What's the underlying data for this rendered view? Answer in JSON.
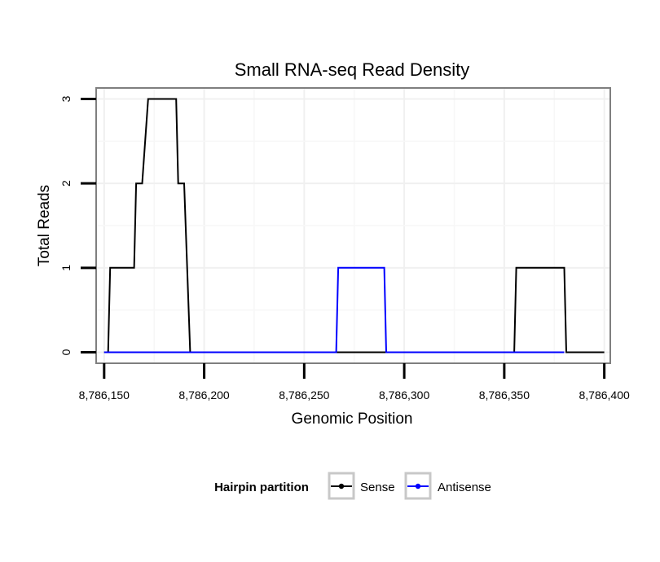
{
  "chart_data": {
    "type": "line",
    "title": "Small RNA-seq Read Density",
    "xlabel": "Genomic Position",
    "ylabel": "Total Reads",
    "xlim": [
      8786146,
      8786403
    ],
    "ylim": [
      -0.13,
      3.13
    ],
    "x_ticks": [
      8786150,
      8786200,
      8786250,
      8786300,
      8786350,
      8786400
    ],
    "x_tick_labels": [
      "8,786,150",
      "8,786,200",
      "8,786,250",
      "8,786,300",
      "8,786,350",
      "8,786,400"
    ],
    "y_ticks": [
      0,
      1,
      2,
      3
    ],
    "y_tick_labels": [
      "0",
      "1",
      "2",
      "3"
    ],
    "grid": true,
    "legend": {
      "title": "Hairpin partition",
      "position": "bottom"
    },
    "series": [
      {
        "name": "Sense",
        "color": "#000000",
        "points": [
          [
            8786150,
            0
          ],
          [
            8786152,
            0
          ],
          [
            8786153,
            1
          ],
          [
            8786165,
            1
          ],
          [
            8786166,
            2
          ],
          [
            8786169,
            2
          ],
          [
            8786172,
            3
          ],
          [
            8786186,
            3
          ],
          [
            8786187,
            2
          ],
          [
            8786190,
            2
          ],
          [
            8786193,
            0
          ],
          [
            8786355,
            0
          ],
          [
            8786356,
            1
          ],
          [
            8786380,
            1
          ],
          [
            8786381,
            0
          ],
          [
            8786400,
            0
          ]
        ]
      },
      {
        "name": "Antisense",
        "color": "#0000ff",
        "points": [
          [
            8786150,
            0
          ],
          [
            8786266,
            0
          ],
          [
            8786267,
            1
          ],
          [
            8786290,
            1
          ],
          [
            8786291,
            0
          ],
          [
            8786380,
            0
          ]
        ]
      }
    ]
  }
}
